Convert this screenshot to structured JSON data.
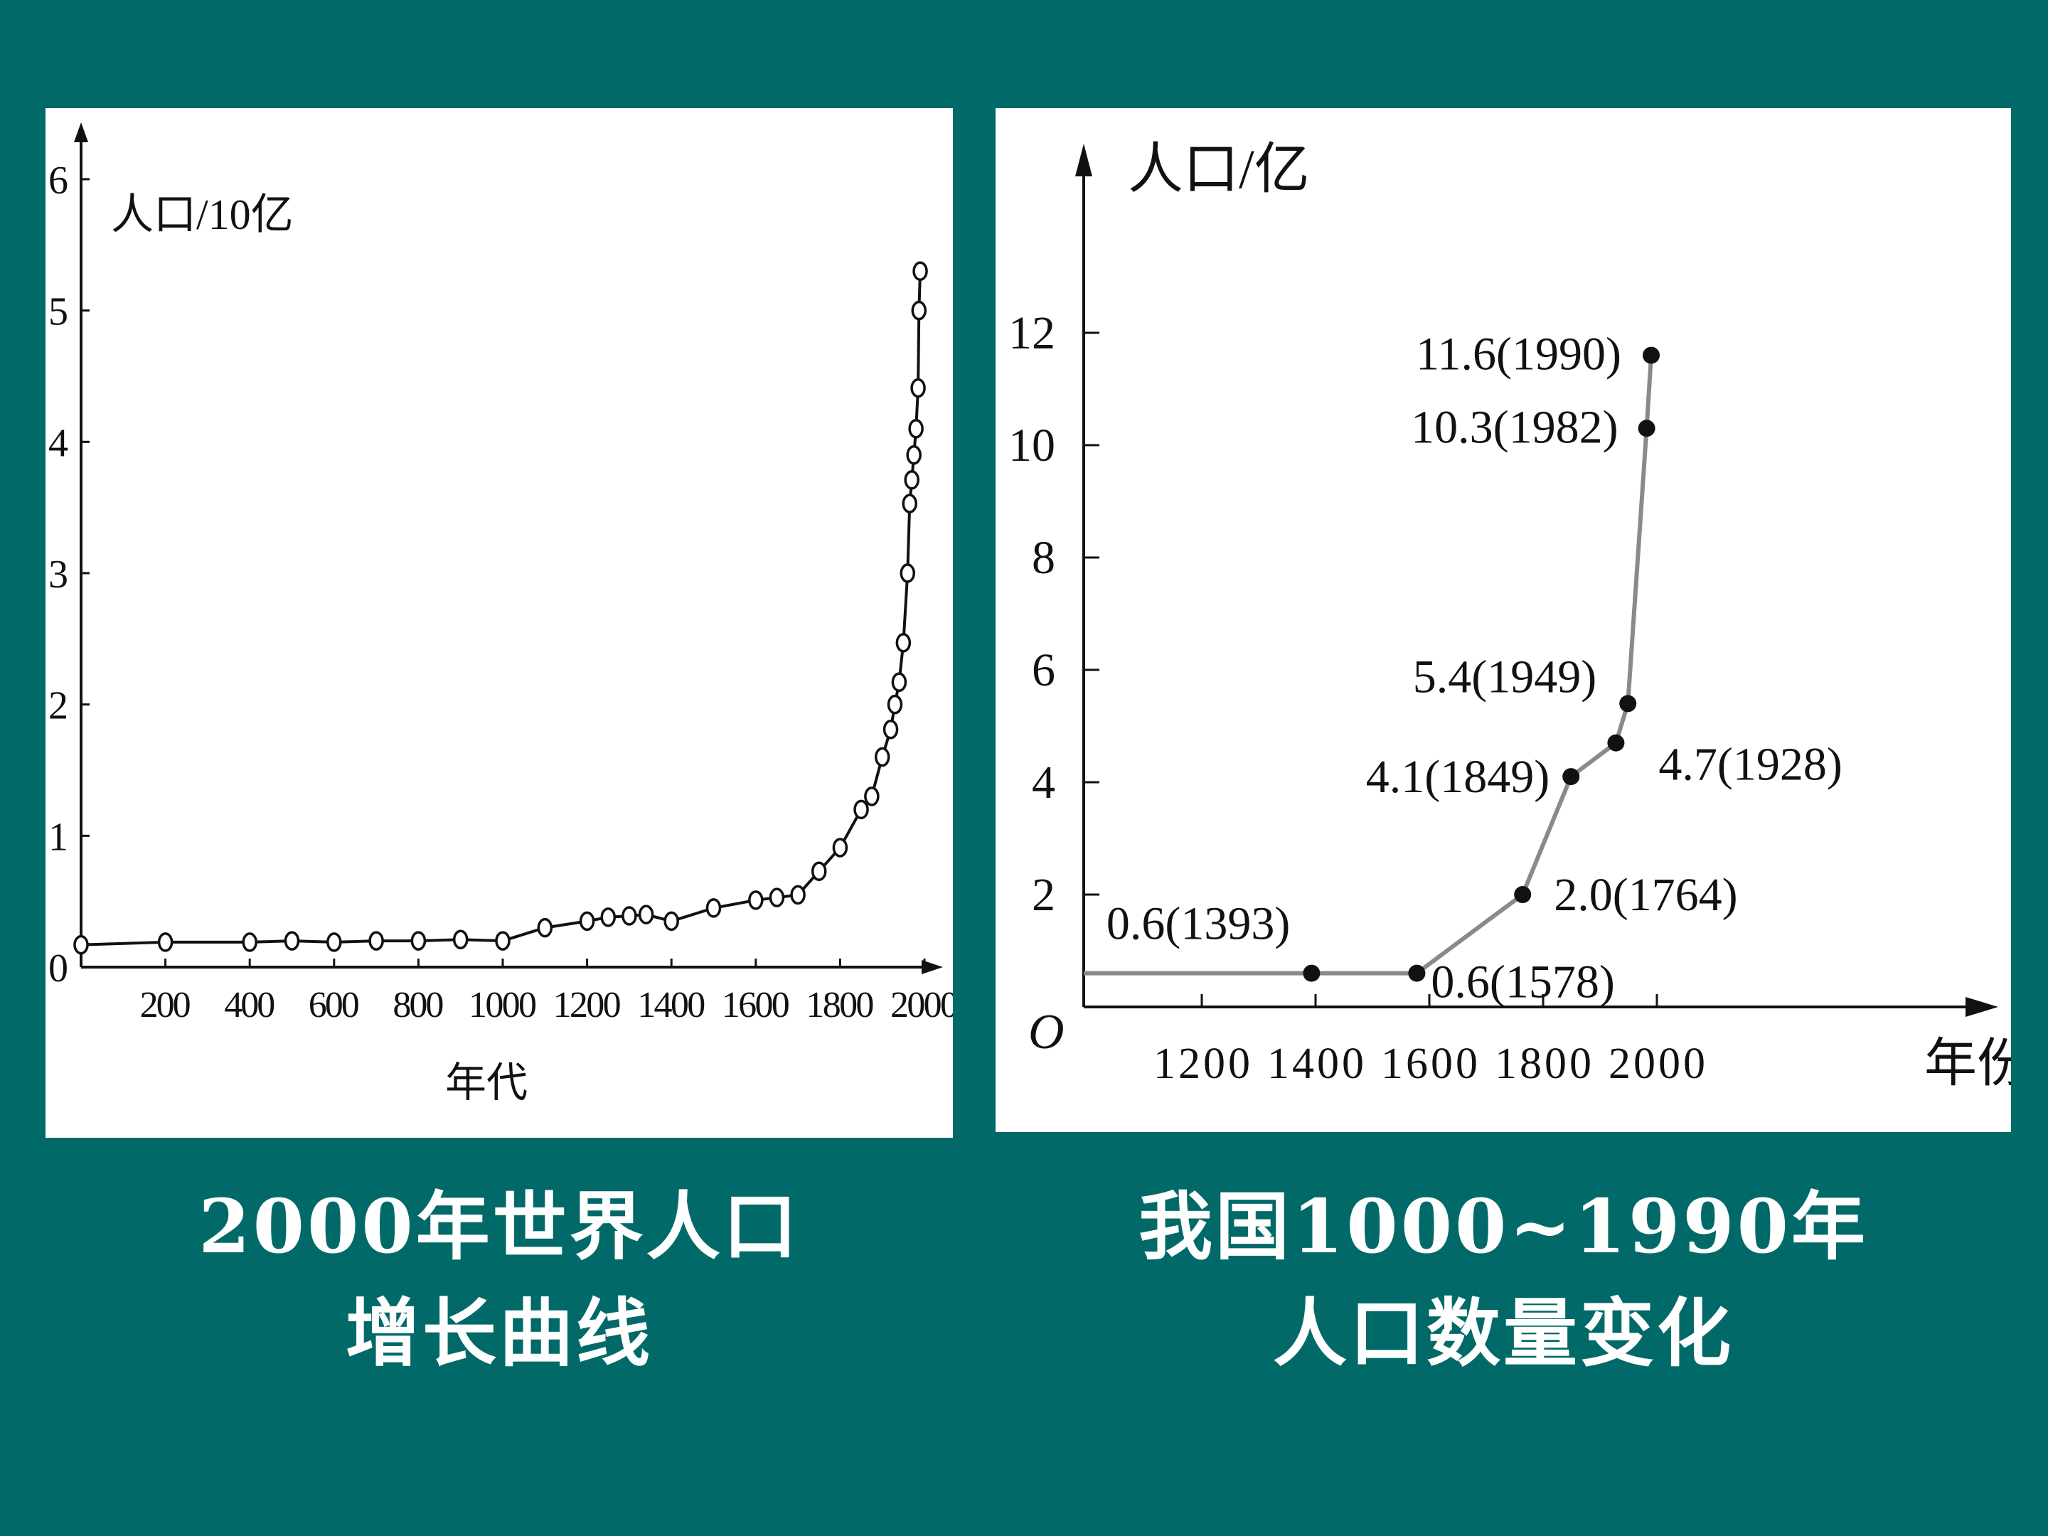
{
  "colors": {
    "background": "#016a68",
    "panel": "#ffffff",
    "ink": "#111111",
    "line_right": "#8a8a8a"
  },
  "captions": {
    "left_line1": "2000年世界人口",
    "left_line2": "增长曲线",
    "right_line1": "我国1000~1990年",
    "right_line2": "人口数量变化"
  },
  "chart_data": [
    {
      "type": "line",
      "ylabel": "人口/10亿",
      "xlabel": "年代",
      "xlim": [
        0,
        2000
      ],
      "ylim": [
        0,
        6
      ],
      "x_ticks": [
        "200",
        "400",
        "600",
        "800",
        "1000",
        "1200",
        "1400",
        "1600",
        "1800",
        "2000"
      ],
      "y_ticks": [
        "0",
        "1",
        "2",
        "3",
        "4",
        "5",
        "6"
      ],
      "marker": "open-circle",
      "series": [
        {
          "x": [
            0,
            200,
            400,
            500,
            600,
            700,
            800,
            900,
            1000,
            1100,
            1200,
            1250,
            1300,
            1340,
            1400,
            1500,
            1600,
            1650,
            1700,
            1750,
            1800,
            1850,
            1875,
            1900,
            1920,
            1930,
            1940,
            1950,
            1960,
            1965,
            1970,
            1975,
            1980,
            1985,
            1987,
            1990
          ],
          "y": [
            0.17,
            0.19,
            0.19,
            0.2,
            0.19,
            0.2,
            0.2,
            0.21,
            0.2,
            0.3,
            0.35,
            0.38,
            0.39,
            0.4,
            0.35,
            0.45,
            0.51,
            0.53,
            0.55,
            0.73,
            0.91,
            1.2,
            1.3,
            1.6,
            1.81,
            2.0,
            2.17,
            2.47,
            3.0,
            3.53,
            3.71,
            3.9,
            4.1,
            4.41,
            5.0,
            5.3
          ]
        }
      ]
    },
    {
      "type": "line",
      "ylabel": "人口/亿",
      "xlabel": "年份",
      "origin_label": "O",
      "xlim": [
        1000,
        2000
      ],
      "ylim": [
        0,
        13
      ],
      "x_ticks": [
        "1200",
        "1400",
        "1600",
        "1800",
        "2000"
      ],
      "y_ticks": [
        "2",
        "4",
        "6",
        "8",
        "10",
        "12"
      ],
      "series": [
        {
          "x": [
            1000,
            1393,
            1578,
            1764,
            1849,
            1928,
            1949,
            1982,
            1990
          ],
          "y": [
            0.6,
            0.6,
            0.6,
            2.0,
            4.1,
            4.7,
            5.4,
            10.3,
            11.6
          ]
        }
      ],
      "annotations": [
        {
          "label": "0.6(1393)",
          "x": 1393,
          "y": 0.6
        },
        {
          "label": "0.6(1578)",
          "x": 1578,
          "y": 0.6
        },
        {
          "label": "2.0(1764)",
          "x": 1764,
          "y": 2.0
        },
        {
          "label": "4.1(1849)",
          "x": 1849,
          "y": 4.1
        },
        {
          "label": "4.7(1928)",
          "x": 1928,
          "y": 4.7
        },
        {
          "label": "5.4(1949)",
          "x": 1949,
          "y": 5.4
        },
        {
          "label": "10.3(1982)",
          "x": 1982,
          "y": 10.3
        },
        {
          "label": "11.6(1990)",
          "x": 1990,
          "y": 11.6
        }
      ]
    }
  ]
}
